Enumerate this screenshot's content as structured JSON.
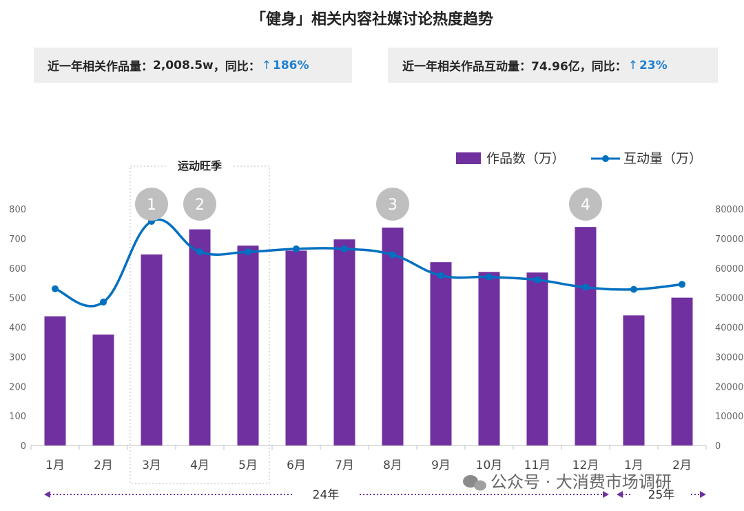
{
  "title": "「健身」相关内容社媒讨论热度趋势",
  "kpis": [
    {
      "label": "近一年相关作品量：",
      "value": "2,008.5w",
      "sep": "，同比：",
      "arrow": "↑",
      "change": "186%"
    },
    {
      "label": "近一年相关作品互动量：",
      "value": "74.96亿",
      "sep": "，同比：",
      "arrow": "↑",
      "change": "23%"
    }
  ],
  "legend": {
    "bars": "作品数（万）",
    "line": "互动量（万）"
  },
  "season_label": "运动旺季",
  "badges": [
    "1",
    "2",
    "3",
    "4"
  ],
  "years": [
    "24年",
    "25年"
  ],
  "watermark": "公众号 · 大消费市场调研",
  "colors": {
    "bar": "#7030a0",
    "line": "#0070c0",
    "badge": "#bfbfbf",
    "up": "#1f7fd1",
    "arrow": "#7030a0"
  },
  "chart_data": {
    "type": "bar",
    "categories": [
      "1月",
      "2月",
      "3月",
      "4月",
      "5月",
      "6月",
      "7月",
      "8月",
      "9月",
      "10月",
      "11月",
      "12月",
      "1月",
      "2月"
    ],
    "series": [
      {
        "name": "作品数（万）",
        "type": "bar",
        "axis": "left",
        "values": [
          437,
          375,
          646,
          731,
          676,
          659,
          697,
          737,
          620,
          587,
          585,
          739,
          440,
          500
        ]
      },
      {
        "name": "互动量（万）",
        "type": "line",
        "axis": "right",
        "values": [
          53000,
          48500,
          75800,
          65500,
          65500,
          66500,
          66500,
          64500,
          57500,
          57000,
          56000,
          53500,
          52800,
          54500
        ]
      }
    ],
    "y_left": {
      "ticks": [
        0,
        100,
        200,
        300,
        400,
        500,
        600,
        700,
        800
      ],
      "range": [
        0,
        800
      ]
    },
    "y_right": {
      "ticks": [
        0,
        10000,
        20000,
        30000,
        40000,
        50000,
        60000,
        70000,
        80000
      ],
      "range": [
        0,
        80000
      ]
    },
    "badge_months": [
      3,
      4,
      8,
      12
    ],
    "season_months": [
      3,
      5
    ],
    "legend_position": "top-right",
    "grid": false
  }
}
